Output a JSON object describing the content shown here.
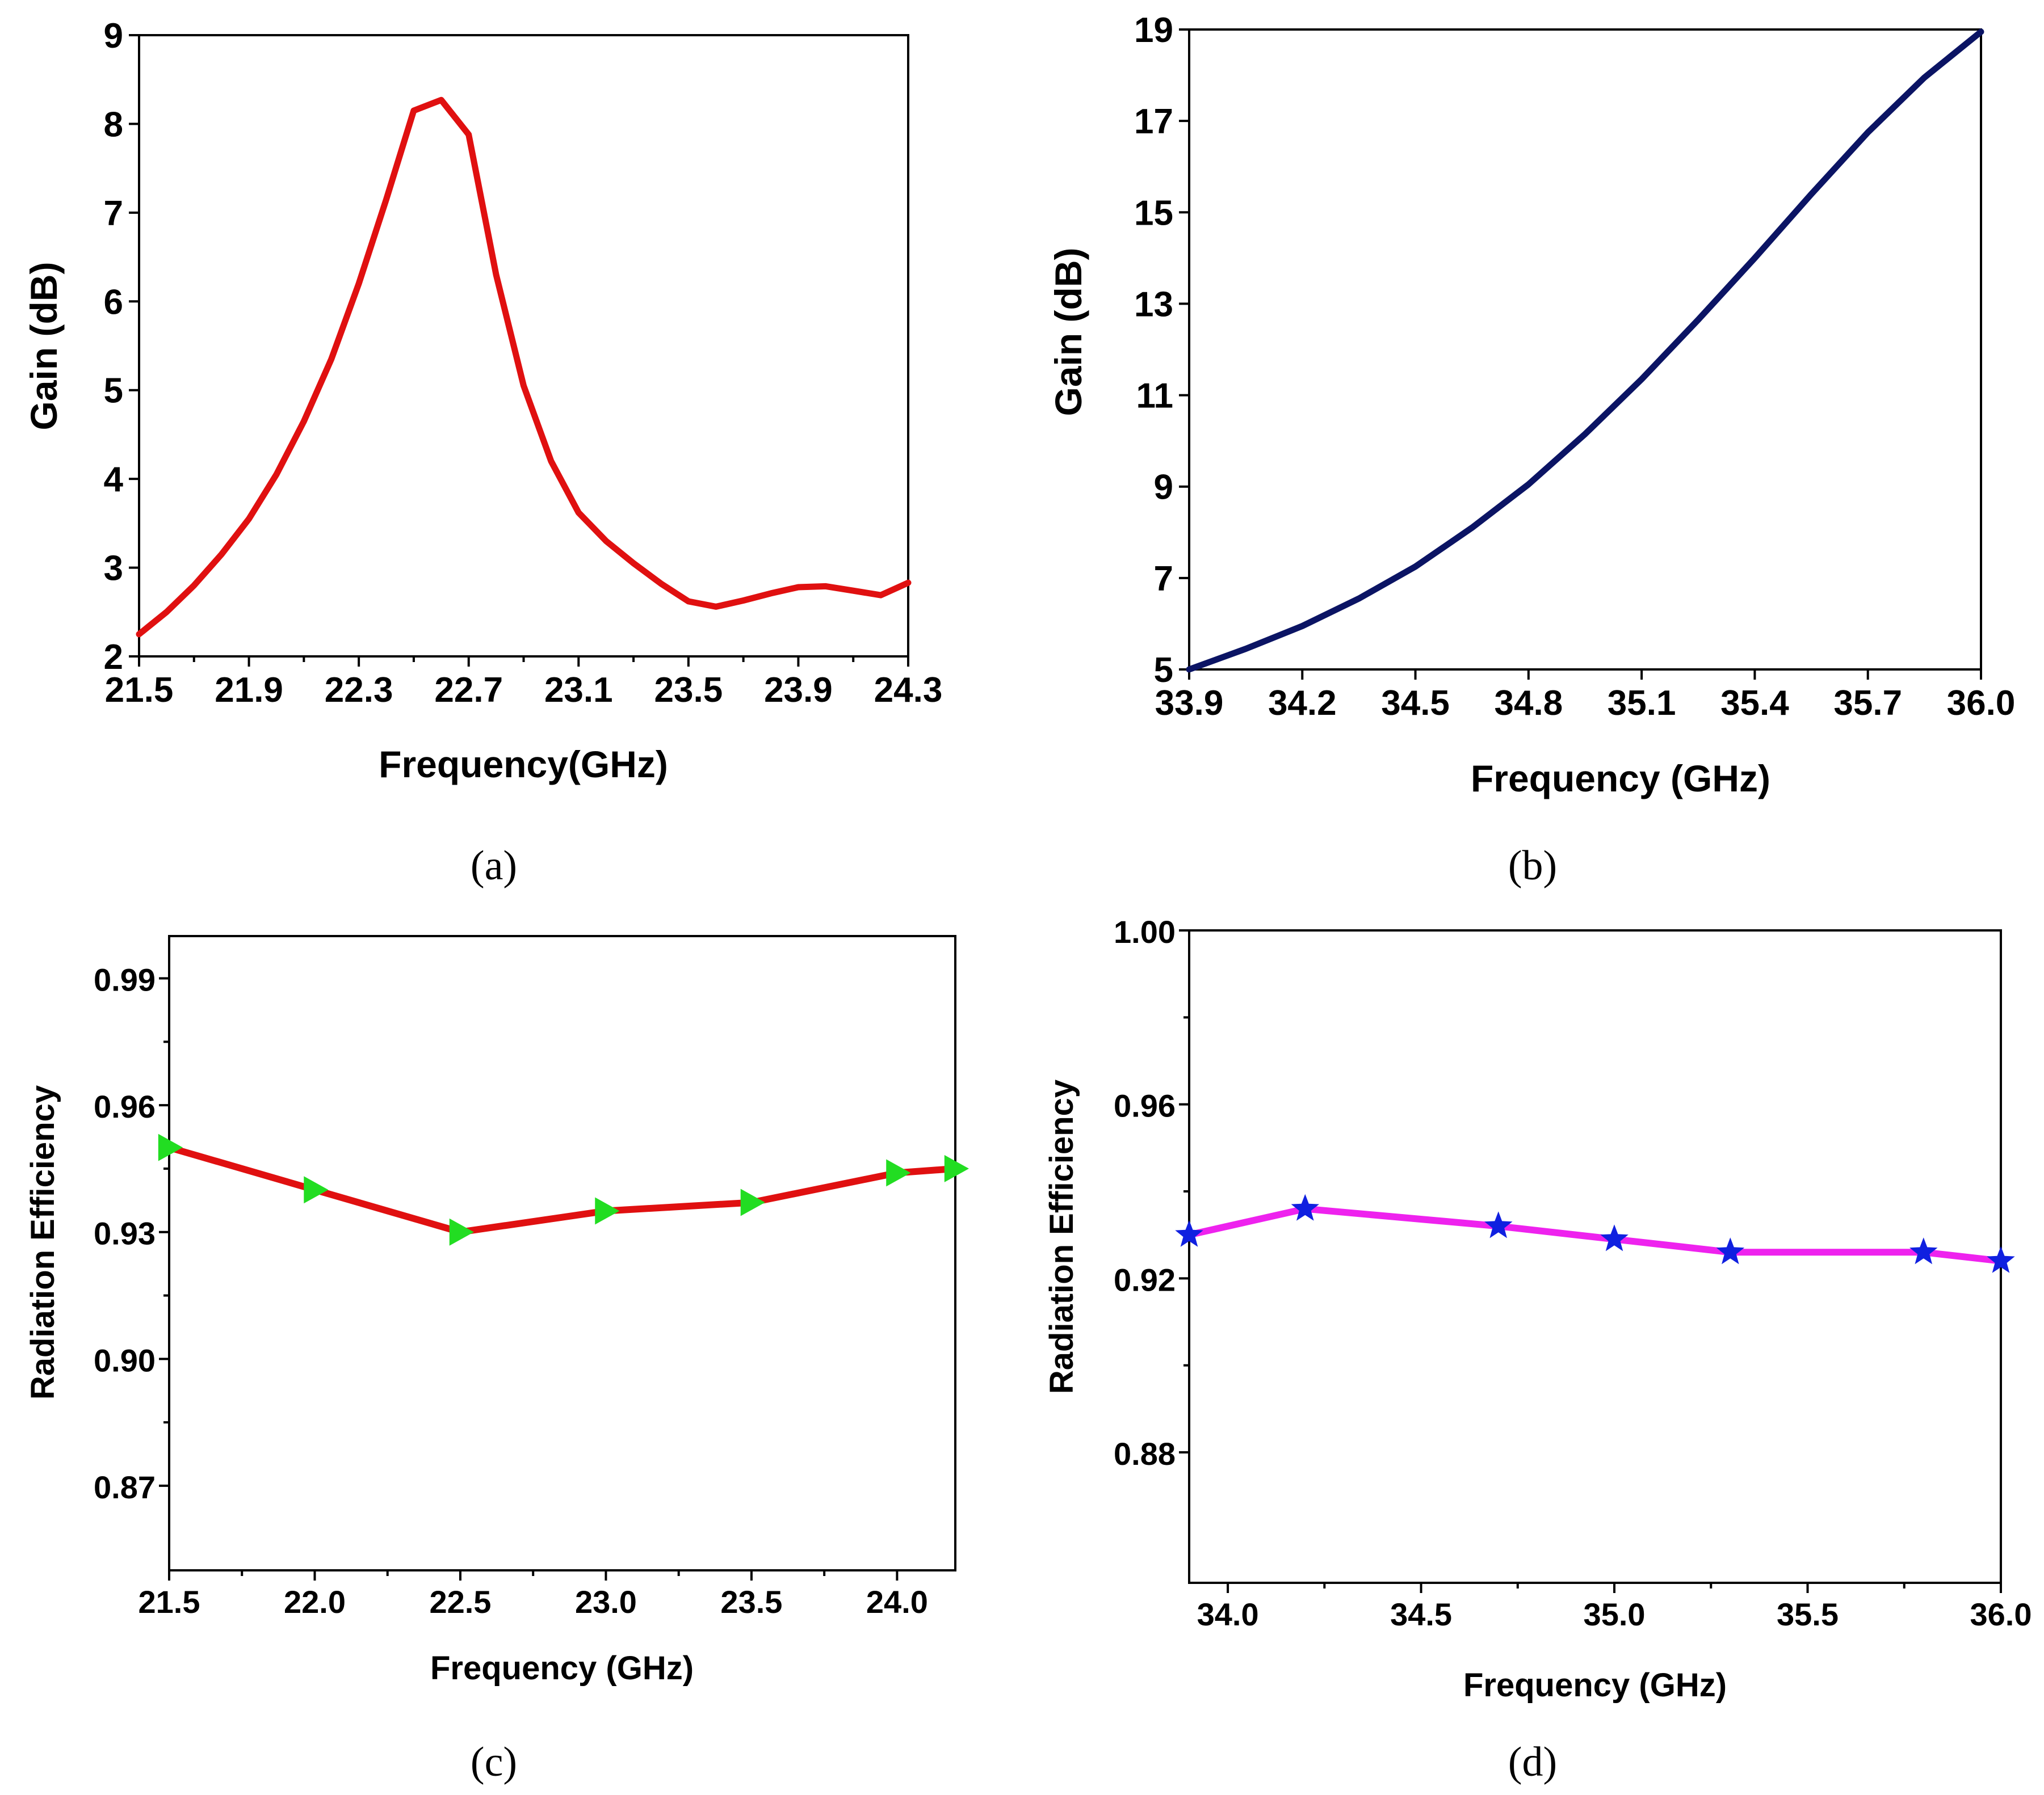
{
  "chart_data": [
    {
      "id": "a",
      "type": "line",
      "panel_label": "(a)",
      "xlabel": "Frequency(GHz)",
      "ylabel": "Gain (dB)",
      "xlim": [
        21.5,
        24.3
      ],
      "ylim": [
        2,
        9
      ],
      "xticks": [
        21.5,
        21.9,
        22.3,
        22.7,
        23.1,
        23.5,
        23.9,
        24.3
      ],
      "xtick_labels": [
        "21.5",
        "21.9",
        "22.3",
        "22.7",
        "23.1",
        "23.5",
        "23.9",
        "24.3"
      ],
      "yticks": [
        2,
        3,
        4,
        5,
        6,
        7,
        8,
        9
      ],
      "ytick_labels": [
        "2",
        "3",
        "4",
        "5",
        "6",
        "7",
        "8",
        "9"
      ],
      "line_color": "#e01010",
      "markers": false,
      "series": [
        {
          "name": "Gain",
          "x": [
            21.5,
            21.6,
            21.7,
            21.8,
            21.9,
            22.0,
            22.1,
            22.2,
            22.3,
            22.4,
            22.5,
            22.6,
            22.7,
            22.8,
            22.9,
            23.0,
            23.1,
            23.2,
            23.3,
            23.4,
            23.5,
            23.6,
            23.7,
            23.8,
            23.9,
            24.0,
            24.1,
            24.2,
            24.3
          ],
          "y": [
            2.25,
            2.5,
            2.8,
            3.15,
            3.55,
            4.05,
            4.65,
            5.35,
            6.2,
            7.15,
            8.15,
            8.27,
            7.88,
            6.3,
            5.05,
            4.2,
            3.62,
            3.3,
            3.05,
            2.82,
            2.62,
            2.56,
            2.63,
            2.71,
            2.78,
            2.79,
            2.74,
            2.69,
            2.83
          ]
        }
      ]
    },
    {
      "id": "b",
      "type": "line",
      "panel_label": "(b)",
      "xlabel": "Frequency (GHz)",
      "ylabel": "Gain (dB)",
      "xlim": [
        33.9,
        36.0
      ],
      "ylim": [
        5,
        19
      ],
      "xticks": [
        33.9,
        34.2,
        34.5,
        34.8,
        35.1,
        35.4,
        35.7,
        36.0
      ],
      "xtick_labels": [
        "33.9",
        "34.2",
        "34.5",
        "34.8",
        "35.1",
        "35.4",
        "35.7",
        "36.0"
      ],
      "yticks": [
        5,
        7,
        9,
        11,
        13,
        15,
        17,
        19
      ],
      "ytick_labels": [
        "5",
        "7",
        "9",
        "11",
        "13",
        "15",
        "17",
        "19"
      ],
      "line_color": "#0b1464",
      "markers": false,
      "series": [
        {
          "name": "Gain",
          "x": [
            33.9,
            34.05,
            34.2,
            34.35,
            34.5,
            34.65,
            34.8,
            34.95,
            35.1,
            35.25,
            35.4,
            35.55,
            35.7,
            35.85,
            36.0
          ],
          "y": [
            5.0,
            5.45,
            5.95,
            6.55,
            7.25,
            8.1,
            9.05,
            10.15,
            11.35,
            12.65,
            14.0,
            15.4,
            16.75,
            17.95,
            18.95
          ]
        }
      ]
    },
    {
      "id": "c",
      "type": "line",
      "panel_label": "(c)",
      "xlabel": "Frequency (GHz)",
      "ylabel": "Radiation Efficiency",
      "xlim": [
        21.5,
        24.2
      ],
      "ylim": [
        0.85,
        1.0
      ],
      "xticks": [
        21.5,
        22.0,
        22.5,
        23.0,
        23.5,
        24.0
      ],
      "xtick_labels": [
        "21.5",
        "22.0",
        "22.5",
        "23.0",
        "23.5",
        "24.0"
      ],
      "yticks": [
        0.87,
        0.9,
        0.93,
        0.96,
        0.99
      ],
      "ytick_labels": [
        "0.87",
        "0.90",
        "0.93",
        "0.96",
        "0.99"
      ],
      "line_color": "#e01010",
      "marker_color": "#22dd22",
      "marker": "triangle-right",
      "series": [
        {
          "name": "Radiation Efficiency",
          "x": [
            21.5,
            22.0,
            22.5,
            23.0,
            23.5,
            24.0,
            24.2
          ],
          "y": [
            0.95,
            0.94,
            0.93,
            0.935,
            0.937,
            0.944,
            0.945
          ]
        }
      ]
    },
    {
      "id": "d",
      "type": "line",
      "panel_label": "(d)",
      "xlabel": "Frequency (GHz)",
      "ylabel": "Radiation Efficiency",
      "xlim": [
        33.9,
        36.0
      ],
      "ylim": [
        0.85,
        1.0
      ],
      "xticks": [
        34.0,
        34.5,
        35.0,
        35.5,
        36.0
      ],
      "xtick_labels": [
        "34.0",
        "34.5",
        "35.0",
        "35.5",
        "36.0"
      ],
      "yticks": [
        0.88,
        0.92,
        0.96,
        1.0
      ],
      "ytick_labels": [
        "0.88",
        "0.92",
        "0.96",
        "1.00"
      ],
      "line_color": "#ee22ee",
      "marker_color": "#1020e0",
      "marker": "star",
      "series": [
        {
          "name": "Radiation Efficiency",
          "x": [
            33.9,
            34.2,
            34.7,
            35.0,
            35.3,
            35.8,
            36.0
          ],
          "y": [
            0.93,
            0.936,
            0.932,
            0.929,
            0.926,
            0.926,
            0.924
          ]
        }
      ]
    }
  ]
}
